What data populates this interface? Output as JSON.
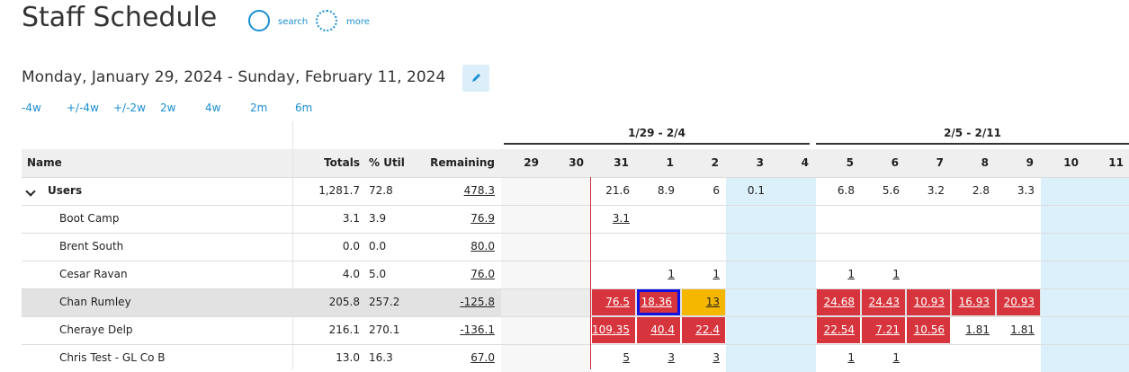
{
  "header": {
    "title": "Staff Schedule",
    "search": "search",
    "more": "more",
    "date_range": "Monday, January 29, 2024 - Sunday, February 11, 2024",
    "range_links": [
      "-4w",
      "+/-4w",
      "+/-2w",
      "2w",
      "4w",
      "2m",
      "6m"
    ]
  },
  "table": {
    "weeks": [
      "1/29 - 2/4",
      "2/5 - 2/11"
    ],
    "columns": [
      "Name",
      "Totals",
      "% Util",
      "Remaining"
    ],
    "days": [
      "29",
      "30",
      "31",
      "1",
      "2",
      "3",
      "4",
      "5",
      "6",
      "7",
      "8",
      "9",
      "10",
      "11"
    ],
    "rows": [
      {
        "name": "Users",
        "totals": "1,281.7",
        "util": "72.8",
        "remaining": "478.3",
        "days": [
          null,
          null,
          "21.6",
          "8.9",
          "6",
          "0.1",
          null,
          "6.8",
          "5.6",
          "3.2",
          "2.8",
          "3.3",
          null,
          null
        ]
      },
      {
        "name": "Boot Camp",
        "totals": "3.1",
        "util": "3.9",
        "remaining": "76.9",
        "days": [
          null,
          null,
          "3.1",
          null,
          null,
          null,
          null,
          null,
          null,
          null,
          null,
          null,
          null,
          null
        ]
      },
      {
        "name": "Brent South",
        "totals": "0.0",
        "util": "0.0",
        "remaining": "80.0",
        "days": [
          null,
          null,
          null,
          null,
          null,
          null,
          null,
          null,
          null,
          null,
          null,
          null,
          null,
          null
        ]
      },
      {
        "name": "Cesar Ravan",
        "totals": "4.0",
        "util": "5.0",
        "remaining": "76.0",
        "days": [
          null,
          null,
          null,
          "1",
          "1",
          null,
          null,
          "1",
          "1",
          null,
          null,
          null,
          null,
          null
        ]
      },
      {
        "name": "Chan Rumley",
        "totals": "205.8",
        "util": "257.2",
        "remaining": "-125.8",
        "days": [
          null,
          null,
          "76.5",
          "18.36",
          "13",
          null,
          null,
          "24.68",
          "24.43",
          "10.93",
          "16.93",
          "20.93",
          null,
          null
        ],
        "fills": [
          null,
          null,
          "#d7353d",
          "#d7353d",
          "#f5b700",
          null,
          null,
          "#d7353d",
          "#d7353d",
          "#d7353d",
          "#d7353d",
          "#d7353d",
          null,
          null
        ]
      },
      {
        "name": "Cheraye Delp",
        "totals": "216.1",
        "util": "270.1",
        "remaining": "-136.1",
        "days": [
          null,
          null,
          "109.35",
          "40.4",
          "22.4",
          null,
          null,
          "22.54",
          "7.21",
          "10.56",
          "1.81",
          "1.81",
          null,
          null
        ],
        "fills": [
          null,
          null,
          "#d7353d",
          "#d7353d",
          "#d7353d",
          null,
          null,
          "#d7353d",
          "#d7353d",
          "#d7353d",
          null,
          null,
          null,
          null
        ]
      },
      {
        "name": "Chris Test - GL Co B",
        "totals": "13.0",
        "util": "16.3",
        "remaining": "67.0",
        "days": [
          null,
          null,
          "5",
          "3",
          "3",
          null,
          null,
          "1",
          "1",
          null,
          null,
          null,
          null,
          null
        ]
      }
    ]
  }
}
